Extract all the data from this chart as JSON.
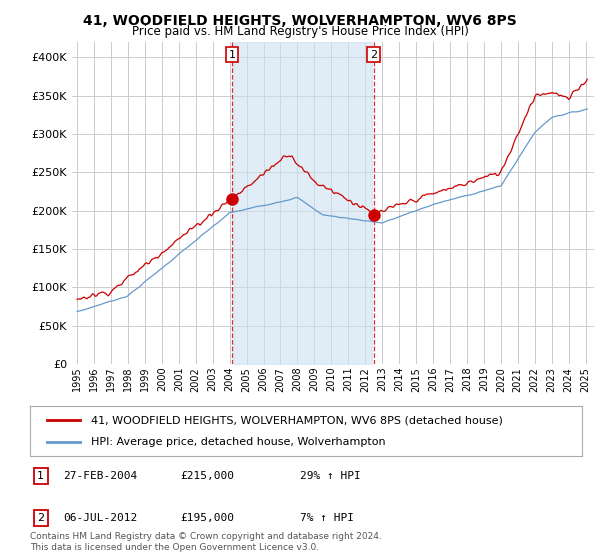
{
  "title": "41, WOODFIELD HEIGHTS, WOLVERHAMPTON, WV6 8PS",
  "subtitle": "Price paid vs. HM Land Registry's House Price Index (HPI)",
  "legend_line1": "41, WOODFIELD HEIGHTS, WOLVERHAMPTON, WV6 8PS (detached house)",
  "legend_line2": "HPI: Average price, detached house, Wolverhampton",
  "sale1_label": "1",
  "sale1_date": "27-FEB-2004",
  "sale1_price": "£215,000",
  "sale1_hpi": "29% ↑ HPI",
  "sale2_label": "2",
  "sale2_date": "06-JUL-2012",
  "sale2_price": "£195,000",
  "sale2_hpi": "7% ↑ HPI",
  "sale1_year": 2004.15,
  "sale1_value": 215000,
  "sale2_year": 2012.5,
  "sale2_value": 195000,
  "hpi_color": "#6699cc",
  "price_color": "#cc0000",
  "fill_color": "#cce0f0",
  "background_color": "#ffffff",
  "grid_color": "#cccccc",
  "ylim": [
    0,
    420000
  ],
  "yticks": [
    0,
    50000,
    100000,
    150000,
    200000,
    250000,
    300000,
    350000,
    400000
  ],
  "xlabel_years": [
    1995,
    1996,
    1997,
    1998,
    1999,
    2000,
    2001,
    2002,
    2003,
    2004,
    2005,
    2006,
    2007,
    2008,
    2009,
    2010,
    2011,
    2012,
    2013,
    2014,
    2015,
    2016,
    2017,
    2018,
    2019,
    2020,
    2021,
    2022,
    2023,
    2024,
    2025
  ],
  "footnote": "Contains HM Land Registry data © Crown copyright and database right 2024.\nThis data is licensed under the Open Government Licence v3.0."
}
